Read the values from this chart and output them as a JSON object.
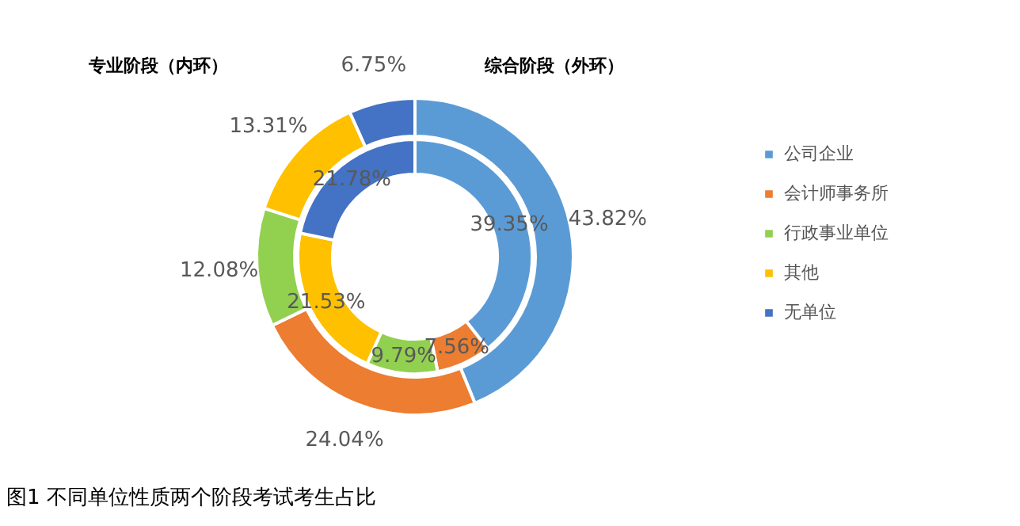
{
  "chart_data": {
    "type": "donut",
    "title": "图1  不同单位性质两个阶段考试考生占比",
    "categories": [
      "公司企业",
      "会计师事务所",
      "行政事业单位",
      "其他",
      "无单位"
    ],
    "colors": [
      "#5b9bd5",
      "#ed7d31",
      "#92d050",
      "#ffc000",
      "#4472c4"
    ],
    "series": [
      {
        "values": [
          43.82,
          24.04,
          12.08,
          13.31,
          6.75
        ],
        "value_labels": [
          "43.82%",
          "24.04%",
          "12.08%",
          "13.31%",
          "6.75%"
        ]
      },
      {
        "values": [
          39.35,
          7.56,
          9.79,
          21.53,
          21.78
        ],
        "value_labels": [
          "39.35%",
          "7.56%",
          "9.79%",
          "21.53%",
          "21.78%"
        ]
      }
    ],
    "annotations": [
      "综合阶段（外环）",
      "专业阶段（内环）"
    ],
    "legend": "right"
  }
}
